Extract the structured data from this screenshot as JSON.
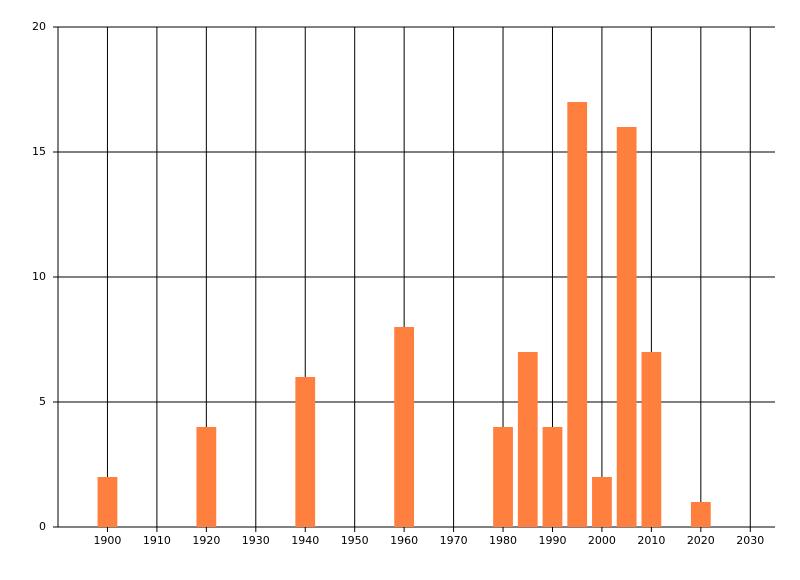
{
  "chart_data": {
    "type": "bar",
    "x": [
      1900,
      1920,
      1940,
      1960,
      1980,
      1985,
      1990,
      1995,
      2000,
      2005,
      2010,
      2020
    ],
    "values": [
      2,
      4,
      6,
      8,
      4,
      7,
      4,
      17,
      2,
      16,
      7,
      1
    ],
    "color": "#ff7f3f",
    "xlim": [
      1890,
      2035
    ],
    "xticks": [
      1900,
      1910,
      1920,
      1930,
      1940,
      1950,
      1960,
      1970,
      1980,
      1990,
      2000,
      2010,
      2020,
      2030
    ],
    "ylim": [
      0,
      20
    ],
    "yticks": [
      0,
      5,
      10,
      15,
      20
    ],
    "grid": true
  }
}
